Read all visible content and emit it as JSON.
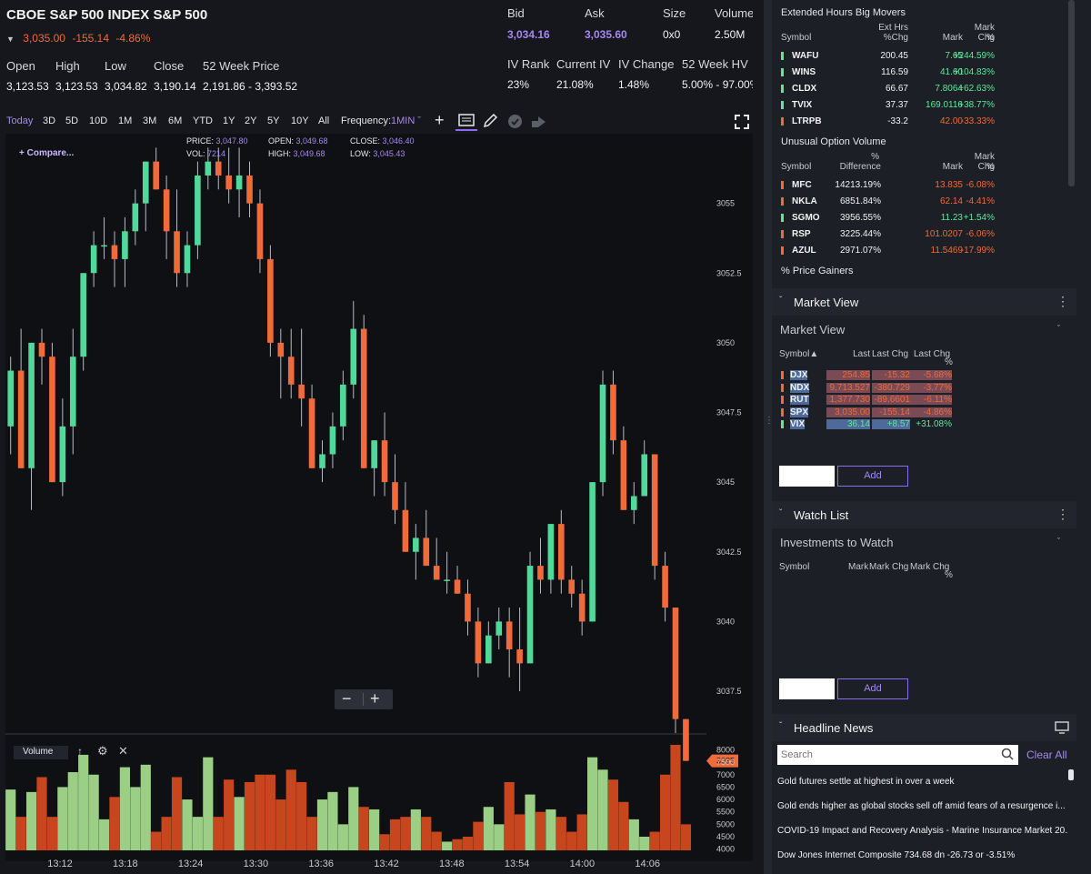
{
  "header": {
    "title": "CBOE S&P 500 INDEX S&P 500",
    "last": "3,035.00",
    "change": "-155.14",
    "change_pct": "-4.86%",
    "stats": [
      {
        "label": "Open",
        "value": "3,123.53"
      },
      {
        "label": "High",
        "value": "3,123.53"
      },
      {
        "label": "Low",
        "value": "3,034.82"
      },
      {
        "label": "Close",
        "value": "3,190.14"
      },
      {
        "label": "52 Week Price",
        "value": "2,191.86 - 3,393.52"
      }
    ],
    "quote": [
      {
        "label": "Bid",
        "value": "3,034.16"
      },
      {
        "label": "Ask",
        "value": "3,035.60"
      },
      {
        "label": "Size",
        "value": "0x0"
      },
      {
        "label": "Volume",
        "value": "2.50M"
      }
    ],
    "iv": [
      {
        "label": "IV Rank",
        "value": "23%"
      },
      {
        "label": "Current IV",
        "value": "21.08%"
      },
      {
        "label": "IV Change",
        "value": "1.48%"
      },
      {
        "label": "52 Week HV",
        "value": "5.00% - 97.00%"
      }
    ]
  },
  "toolbar": {
    "timeframes": [
      "Today",
      "3D",
      "5D",
      "10D",
      "1M",
      "3M",
      "6M",
      "YTD",
      "1Y",
      "2Y",
      "5Y",
      "10Y",
      "All"
    ],
    "active_timeframe": "Today",
    "frequency_label": "Frequency:",
    "frequency_value": "1MIN",
    "icons": [
      "plus-icon",
      "news-icon",
      "pencil-icon",
      "check-icon",
      "share-icon",
      "fullscreen-icon"
    ]
  },
  "chart_info": {
    "compare": "+ Compare...",
    "price_label": "PRICE:",
    "price": "3,047.80",
    "vol_label": "VOL:",
    "vol": "7214",
    "open_label": "OPEN:",
    "open": "3,049.68",
    "high_label": "HIGH:",
    "high": "3,049.68",
    "close_label": "CLOSE:",
    "close": "3,046.40",
    "low_label": "LOW:",
    "low": "3,045.43",
    "last_tag": "3035",
    "volume_label": "Volume",
    "colors": {
      "up": "#4fd99b",
      "down": "#f06a3a",
      "vol_up": "#9bcf85",
      "vol_down": "#c8461e"
    }
  },
  "chart_data": {
    "type": "candlestick",
    "y_ticks": [
      "3055",
      "3052.5",
      "3050",
      "3047.5",
      "3045",
      "3042.5",
      "3040",
      "3037.5"
    ],
    "y_range": [
      3036,
      3057.5
    ],
    "x_ticks": [
      "13:12",
      "13:18",
      "13:24",
      "13:30",
      "13:36",
      "13:42",
      "13:48",
      "13:54",
      "14:00",
      "14:06"
    ],
    "volume_ticks": [
      "8000",
      "7500",
      "7000",
      "6500",
      "6000",
      "5500",
      "5000",
      "4500",
      "4000"
    ],
    "volume_range": [
      3950,
      8200
    ],
    "candles": [
      [
        3047.0,
        3049.5,
        3046.0,
        3049.0
      ],
      [
        3049.0,
        3050.5,
        3045.5,
        3045.5
      ],
      [
        3045.5,
        3050.0,
        3044.0,
        3050.0
      ],
      [
        3050.0,
        3050.5,
        3048.5,
        3049.5
      ],
      [
        3049.5,
        3050.0,
        3045.0,
        3045.0
      ],
      [
        3045.0,
        3048.0,
        3044.5,
        3047.0
      ],
      [
        3047.0,
        3050.5,
        3046.0,
        3049.5
      ],
      [
        3049.5,
        3052.5,
        3049.0,
        3052.5
      ],
      [
        3052.5,
        3054.0,
        3052.0,
        3053.5
      ],
      [
        3053.5,
        3054.5,
        3053.0,
        3053.5
      ],
      [
        3053.5,
        3054.0,
        3052.0,
        3053.0
      ],
      [
        3053.0,
        3054.5,
        3052.0,
        3054.0
      ],
      [
        3054.0,
        3055.5,
        3053.5,
        3055.0
      ],
      [
        3055.0,
        3056.5,
        3054.0,
        3056.5
      ],
      [
        3056.5,
        3057.0,
        3055.5,
        3055.5
      ],
      [
        3055.5,
        3056.0,
        3053.0,
        3054.0
      ],
      [
        3054.0,
        3055.5,
        3052.0,
        3052.5
      ],
      [
        3052.5,
        3054.0,
        3052.0,
        3053.5
      ],
      [
        3053.5,
        3056.5,
        3053.0,
        3056.0
      ],
      [
        3056.0,
        3057.0,
        3055.5,
        3056.5
      ],
      [
        3056.5,
        3057.0,
        3055.5,
        3056.0
      ],
      [
        3056.0,
        3057.0,
        3055.0,
        3055.5
      ],
      [
        3055.5,
        3057.0,
        3054.5,
        3056.0
      ],
      [
        3056.0,
        3056.5,
        3054.5,
        3055.0
      ],
      [
        3055.0,
        3055.5,
        3052.5,
        3053.0
      ],
      [
        3053.0,
        3053.5,
        3049.5,
        3050.0
      ],
      [
        3050.0,
        3050.5,
        3048.0,
        3049.5
      ],
      [
        3049.5,
        3050.5,
        3048.0,
        3048.5
      ],
      [
        3048.5,
        3050.5,
        3047.0,
        3048.0
      ],
      [
        3048.0,
        3048.5,
        3045.5,
        3045.5
      ],
      [
        3045.5,
        3046.5,
        3045.0,
        3046.0
      ],
      [
        3046.0,
        3047.5,
        3045.5,
        3047.0
      ],
      [
        3047.0,
        3049.0,
        3046.5,
        3048.5
      ],
      [
        3048.5,
        3051.5,
        3048.0,
        3050.5
      ],
      [
        3050.5,
        3051.0,
        3045.5,
        3045.5
      ],
      [
        3045.5,
        3046.5,
        3044.5,
        3046.5
      ],
      [
        3046.5,
        3047.5,
        3044.5,
        3045.0
      ],
      [
        3045.0,
        3046.0,
        3043.5,
        3044.0
      ],
      [
        3044.0,
        3045.0,
        3042.5,
        3042.5
      ],
      [
        3042.5,
        3043.5,
        3041.5,
        3043.0
      ],
      [
        3043.0,
        3044.0,
        3042.0,
        3042.0
      ],
      [
        3042.0,
        3043.0,
        3041.5,
        3041.5
      ],
      [
        3041.5,
        3042.5,
        3041.0,
        3041.5
      ],
      [
        3041.5,
        3042.0,
        3041.0,
        3041.0
      ],
      [
        3041.0,
        3041.5,
        3039.5,
        3040.0
      ],
      [
        3040.0,
        3040.5,
        3038.0,
        3038.5
      ],
      [
        3038.5,
        3040.0,
        3038.5,
        3039.5
      ],
      [
        3039.5,
        3040.5,
        3039.0,
        3040.0
      ],
      [
        3040.0,
        3040.5,
        3038.0,
        3039.0
      ],
      [
        3039.0,
        3040.5,
        3037.5,
        3038.5
      ],
      [
        3038.5,
        3042.5,
        3038.5,
        3042.0
      ],
      [
        3042.0,
        3043.0,
        3041.0,
        3041.5
      ],
      [
        3041.5,
        3043.5,
        3041.0,
        3043.5
      ],
      [
        3043.5,
        3044.0,
        3041.0,
        3041.5
      ],
      [
        3041.5,
        3042.0,
        3040.5,
        3041.0
      ],
      [
        3041.0,
        3041.5,
        3039.5,
        3040.0
      ],
      [
        3040.0,
        3045.0,
        3040.0,
        3045.0
      ],
      [
        3045.0,
        3049.0,
        3044.5,
        3048.5
      ],
      [
        3048.5,
        3049.0,
        3046.0,
        3046.5
      ],
      [
        3046.5,
        3047.0,
        3044.0,
        3044.0
      ],
      [
        3044.0,
        3045.0,
        3043.5,
        3044.5
      ],
      [
        3044.5,
        3046.5,
        3044.5,
        3046.0
      ],
      [
        3046.0,
        3046.0,
        3041.5,
        3042.0
      ],
      [
        3042.0,
        3042.5,
        3040.0,
        3040.5
      ],
      [
        3040.5,
        3040.5,
        3036.0,
        3036.5
      ],
      [
        3036.5,
        3036.5,
        3035.0,
        3035.0
      ]
    ],
    "volumes": [
      6400,
      5300,
      6300,
      6900,
      5300,
      6500,
      7100,
      7800,
      7000,
      5200,
      6100,
      7300,
      6500,
      7400,
      4700,
      5300,
      6900,
      6000,
      5300,
      7700,
      5300,
      6800,
      6100,
      6700,
      7000,
      7000,
      6000,
      7200,
      6700,
      5300,
      6000,
      6300,
      5000,
      6500,
      5700,
      5600,
      4600,
      5200,
      5300,
      5600,
      5300,
      4700,
      4300,
      4400,
      4500,
      5100,
      5700,
      5000,
      6700,
      5400,
      6200,
      5500,
      5600,
      5300,
      4700,
      5400,
      7700,
      7200,
      6800,
      5900,
      5200,
      4500,
      4700,
      7000,
      8300,
      5000
    ]
  },
  "sidebar": {
    "big_movers": {
      "title": "Extended Hours Big Movers",
      "headers": [
        "Symbol",
        "Ext Hrs",
        "%Chg",
        "Mark",
        "Mark Chg",
        "%"
      ],
      "rows": [
        {
          "symbol": "WAFU",
          "ext": "200.45",
          "mark": "7.65",
          "chg": "+244.59%",
          "color": "#5ee89a"
        },
        {
          "symbol": "WINS",
          "ext": "116.59",
          "mark": "41.60",
          "chg": "+104.83%",
          "color": "#5ee89a"
        },
        {
          "symbol": "CLDX",
          "ext": "66.67",
          "mark": "7.8064",
          "chg": "+62.63%",
          "color": "#5ee89a"
        },
        {
          "symbol": "TVIX",
          "ext": "37.37",
          "mark": "169.0116",
          "chg": "+38.77%",
          "color": "#5ee89a"
        },
        {
          "symbol": "LTRPB",
          "ext": "-33.2",
          "mark": "42.00",
          "chg": "-33.33%",
          "color": "#f06a3a"
        }
      ]
    },
    "unusual": {
      "title": "Unusual Option Volume",
      "headers": [
        "Symbol",
        "%",
        "Difference",
        "Mark",
        "Mark Chg",
        "%"
      ],
      "rows": [
        {
          "symbol": "MFC",
          "diff": "14213.19%",
          "mark": "13.835",
          "chg": "-6.08%",
          "color": "#f06a3a"
        },
        {
          "symbol": "NKLA",
          "diff": "6851.84%",
          "mark": "62.14",
          "chg": "-4.41%",
          "color": "#f06a3a"
        },
        {
          "symbol": "SGMO",
          "diff": "3956.55%",
          "mark": "11.23",
          "chg": "+1.54%",
          "color": "#5ee89a"
        },
        {
          "symbol": "RSP",
          "diff": "3225.44%",
          "mark": "101.0207",
          "chg": "-6.06%",
          "color": "#f06a3a"
        },
        {
          "symbol": "AZUL",
          "diff": "2971.07%",
          "mark": "11.5469",
          "chg": "-17.99%",
          "color": "#f06a3a"
        }
      ]
    },
    "price_gainers": "% Price Gainers",
    "market_view": {
      "title": "Market View",
      "dropdown": "Market View",
      "headers": [
        "Symbol▲",
        "Last",
        "Last Chg",
        "Last Chg",
        "%"
      ],
      "rows": [
        {
          "symbol": "DJX",
          "last": "254.85",
          "chg": "-15.32",
          "pct": "-5.68%",
          "color": "#f06a3a"
        },
        {
          "symbol": "NDX",
          "last": "9,713.527",
          "chg": "-380.729",
          "pct": "-3.77%",
          "color": "#f06a3a"
        },
        {
          "symbol": "RUT",
          "last": "1,377.730",
          "chg": "-89.6601",
          "pct": "-6.11%",
          "color": "#f06a3a"
        },
        {
          "symbol": "SPX",
          "last": "3,035.00",
          "chg": "-155.14",
          "pct": "-4.86%",
          "color": "#f06a3a"
        },
        {
          "symbol": "VIX",
          "last": "36.14",
          "chg": "+8.57",
          "pct": "+31.08%",
          "color": "#5ee89a"
        }
      ],
      "add_label": "Add"
    },
    "watch_list": {
      "title": "Watch List",
      "dropdown": "Investments to Watch",
      "headers": [
        "Symbol",
        "Mark",
        "Mark Chg",
        "Mark Chg",
        "%"
      ],
      "add_label": "Add"
    },
    "news": {
      "title": "Headline News",
      "search_placeholder": "Search",
      "clear_all": "Clear All",
      "items": [
        "Gold futures settle at highest in over a week",
        "Gold ends higher as global stocks sell off amid fears of a resurgence i...",
        "COVID-19 Impact and Recovery Analysis - Marine Insurance Market 20...",
        "Dow Jones Internet Composite 734.68 dn -26.73 or -3.51%"
      ]
    }
  }
}
